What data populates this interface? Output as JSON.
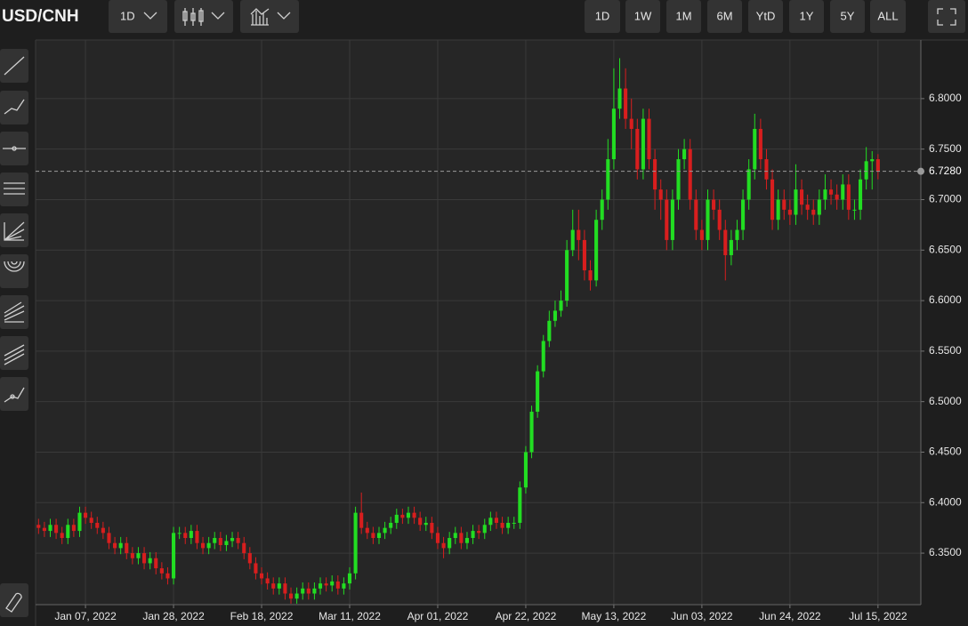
{
  "header": {
    "symbol": "USD/CNH",
    "interval": "1D",
    "ranges": [
      "1D",
      "1W",
      "1M",
      "6M",
      "YtD",
      "1Y",
      "5Y",
      "ALL"
    ]
  },
  "chart_data": {
    "type": "candlestick",
    "up_color": "#22dd22",
    "down_color": "#d81e1e",
    "grid": true,
    "xlim": [
      -0.5,
      150.3
    ],
    "xticks": [
      {
        "value": 8,
        "label": "Jan 07, 2022"
      },
      {
        "value": 23,
        "label": "Jan 28, 2022"
      },
      {
        "value": 38,
        "label": "Feb 18, 2022"
      },
      {
        "value": 53,
        "label": "Mar 11, 2022"
      },
      {
        "value": 68,
        "label": "Apr 01, 2022"
      },
      {
        "value": 83,
        "label": "Apr 22, 2022"
      },
      {
        "value": 98,
        "label": "May 13, 2022"
      },
      {
        "value": 113,
        "label": "Jun 03, 2022"
      },
      {
        "value": 128,
        "label": "Jun 24, 2022"
      },
      {
        "value": 143,
        "label": "Jul 15, 2022"
      }
    ],
    "ylim": [
      6.299,
      6.858
    ],
    "yticks": [
      {
        "value": 6.35,
        "label": "6.3500"
      },
      {
        "value": 6.4,
        "label": "6.4000"
      },
      {
        "value": 6.45,
        "label": "6.4500"
      },
      {
        "value": 6.5,
        "label": "6.5000"
      },
      {
        "value": 6.55,
        "label": "6.5500"
      },
      {
        "value": 6.6,
        "label": "6.6000"
      },
      {
        "value": 6.65,
        "label": "6.6500"
      },
      {
        "value": 6.7,
        "label": "6.7000"
      },
      {
        "value": 6.75,
        "label": "6.7500"
      },
      {
        "value": 6.8,
        "label": "6.8000"
      }
    ],
    "last_price": {
      "value": 6.728,
      "label": "6.7280"
    },
    "open": [
      6.378,
      6.375,
      6.372,
      6.378,
      6.37,
      6.365,
      6.378,
      6.372,
      6.39,
      6.385,
      6.38,
      6.375,
      6.37,
      6.36,
      6.355,
      6.36,
      6.35,
      6.345,
      6.35,
      6.34,
      6.345,
      6.335,
      6.33,
      6.325,
      6.37,
      6.37,
      6.365,
      6.372,
      6.36,
      6.355,
      6.36,
      6.365,
      6.358,
      6.362,
      6.365,
      6.36,
      6.35,
      6.34,
      6.33,
      6.325,
      6.32,
      6.315,
      6.32,
      6.31,
      6.305,
      6.31,
      6.315,
      6.31,
      6.315,
      6.32,
      6.318,
      6.322,
      6.315,
      6.32,
      6.33,
      6.39,
      6.375,
      6.37,
      6.365,
      6.37,
      6.375,
      6.38,
      6.388,
      6.385,
      6.39,
      6.385,
      6.378,
      6.38,
      6.37,
      6.36,
      6.355,
      6.365,
      6.37,
      6.36,
      6.365,
      6.372,
      6.37,
      6.378,
      6.385,
      6.38,
      6.375,
      6.38,
      6.38,
      6.415,
      6.45,
      6.49,
      6.53,
      6.56,
      6.58,
      6.59,
      6.6,
      6.65,
      6.67,
      6.66,
      6.63,
      6.62,
      6.68,
      6.7,
      6.74,
      6.79,
      6.81,
      6.78,
      6.77,
      6.73,
      6.78,
      6.74,
      6.71,
      6.7,
      6.66,
      6.7,
      6.74,
      6.75,
      6.7,
      6.67,
      6.66,
      6.7,
      6.69,
      6.67,
      6.645,
      6.66,
      6.67,
      6.7,
      6.73,
      6.77,
      6.74,
      6.72,
      6.68,
      6.7,
      6.69,
      6.685,
      6.71,
      6.695,
      6.69,
      6.685,
      6.7,
      6.71,
      6.705,
      6.7,
      6.715,
      6.69,
      6.69,
      6.72,
      6.738,
      6.74
    ],
    "high": [
      6.384,
      6.381,
      6.384,
      6.384,
      6.376,
      6.384,
      6.384,
      6.396,
      6.396,
      6.391,
      6.386,
      6.381,
      6.376,
      6.366,
      6.366,
      6.366,
      6.356,
      6.356,
      6.356,
      6.351,
      6.351,
      6.341,
      6.336,
      6.376,
      6.376,
      6.376,
      6.378,
      6.378,
      6.366,
      6.366,
      6.371,
      6.371,
      6.368,
      6.371,
      6.371,
      6.366,
      6.356,
      6.346,
      6.336,
      6.331,
      6.326,
      6.326,
      6.326,
      6.316,
      6.316,
      6.321,
      6.321,
      6.321,
      6.326,
      6.326,
      6.328,
      6.328,
      6.326,
      6.336,
      6.396,
      6.41,
      6.381,
      6.376,
      6.376,
      6.381,
      6.386,
      6.394,
      6.394,
      6.396,
      6.396,
      6.391,
      6.386,
      6.386,
      6.376,
      6.366,
      6.371,
      6.376,
      6.376,
      6.371,
      6.378,
      6.378,
      6.384,
      6.391,
      6.391,
      6.386,
      6.386,
      6.386,
      6.421,
      6.456,
      6.496,
      6.536,
      6.566,
      6.59,
      6.6,
      6.61,
      6.66,
      6.69,
      6.69,
      6.67,
      6.64,
      6.69,
      6.71,
      6.76,
      6.83,
      6.84,
      6.83,
      6.8,
      6.78,
      6.79,
      6.79,
      6.75,
      6.72,
      6.71,
      6.71,
      6.75,
      6.76,
      6.76,
      6.71,
      6.68,
      6.71,
      6.71,
      6.7,
      6.68,
      6.67,
      6.68,
      6.71,
      6.74,
      6.785,
      6.78,
      6.75,
      6.73,
      6.71,
      6.71,
      6.7,
      6.735,
      6.72,
      6.705,
      6.7,
      6.71,
      6.725,
      6.72,
      6.715,
      6.725,
      6.725,
      6.7,
      6.73,
      6.752,
      6.748,
      6.745
    ],
    "low": [
      6.369,
      6.366,
      6.366,
      6.364,
      6.359,
      6.359,
      6.366,
      6.366,
      6.379,
      6.374,
      6.369,
      6.364,
      6.354,
      6.349,
      6.349,
      6.344,
      6.339,
      6.339,
      6.334,
      6.334,
      6.329,
      6.324,
      6.319,
      6.319,
      6.364,
      6.359,
      6.359,
      6.354,
      6.349,
      6.349,
      6.354,
      6.352,
      6.352,
      6.356,
      6.354,
      6.344,
      6.334,
      6.324,
      6.319,
      6.314,
      6.309,
      6.309,
      6.304,
      6.3,
      6.3,
      6.304,
      6.304,
      6.304,
      6.309,
      6.312,
      6.312,
      6.309,
      6.309,
      6.314,
      6.324,
      6.369,
      6.364,
      6.359,
      6.359,
      6.364,
      6.369,
      6.374,
      6.379,
      6.379,
      6.379,
      6.372,
      6.372,
      6.364,
      6.354,
      6.345,
      6.349,
      6.359,
      6.354,
      6.354,
      6.359,
      6.364,
      6.364,
      6.372,
      6.374,
      6.369,
      6.369,
      6.374,
      6.374,
      6.409,
      6.444,
      6.484,
      6.524,
      6.554,
      6.574,
      6.584,
      6.594,
      6.644,
      6.64,
      6.62,
      6.61,
      6.614,
      6.67,
      6.69,
      6.73,
      6.78,
      6.77,
      6.75,
      6.72,
      6.72,
      6.73,
      6.69,
      6.68,
      6.65,
      6.65,
      6.69,
      6.73,
      6.69,
      6.66,
      6.65,
      6.65,
      6.68,
      6.66,
      6.62,
      6.635,
      6.65,
      6.66,
      6.69,
      6.72,
      6.73,
      6.71,
      6.67,
      6.67,
      6.68,
      6.675,
      6.675,
      6.685,
      6.68,
      6.675,
      6.675,
      6.69,
      6.695,
      6.69,
      6.69,
      6.68,
      6.68,
      6.68,
      6.71,
      6.71,
      6.72
    ],
    "close": [
      6.375,
      6.372,
      6.378,
      6.37,
      6.365,
      6.378,
      6.372,
      6.39,
      6.385,
      6.38,
      6.375,
      6.37,
      6.36,
      6.355,
      6.36,
      6.35,
      6.345,
      6.35,
      6.34,
      6.345,
      6.335,
      6.33,
      6.325,
      6.37,
      6.37,
      6.365,
      6.372,
      6.36,
      6.355,
      6.36,
      6.365,
      6.358,
      6.362,
      6.365,
      6.36,
      6.35,
      6.34,
      6.33,
      6.325,
      6.32,
      6.315,
      6.32,
      6.31,
      6.305,
      6.31,
      6.315,
      6.31,
      6.315,
      6.32,
      6.318,
      6.322,
      6.315,
      6.32,
      6.33,
      6.39,
      6.375,
      6.37,
      6.365,
      6.37,
      6.375,
      6.38,
      6.388,
      6.385,
      6.39,
      6.385,
      6.378,
      6.38,
      6.37,
      6.36,
      6.355,
      6.365,
      6.37,
      6.36,
      6.365,
      6.372,
      6.37,
      6.378,
      6.385,
      6.38,
      6.375,
      6.38,
      6.38,
      6.415,
      6.45,
      6.49,
      6.53,
      6.56,
      6.58,
      6.59,
      6.6,
      6.65,
      6.67,
      6.66,
      6.63,
      6.62,
      6.68,
      6.7,
      6.74,
      6.79,
      6.81,
      6.78,
      6.77,
      6.73,
      6.78,
      6.74,
      6.71,
      6.7,
      6.66,
      6.7,
      6.74,
      6.75,
      6.7,
      6.67,
      6.66,
      6.7,
      6.69,
      6.67,
      6.645,
      6.66,
      6.67,
      6.7,
      6.73,
      6.77,
      6.74,
      6.72,
      6.68,
      6.7,
      6.69,
      6.685,
      6.71,
      6.695,
      6.69,
      6.685,
      6.7,
      6.71,
      6.705,
      6.7,
      6.715,
      6.69,
      6.69,
      6.72,
      6.738,
      6.74,
      6.728
    ]
  }
}
